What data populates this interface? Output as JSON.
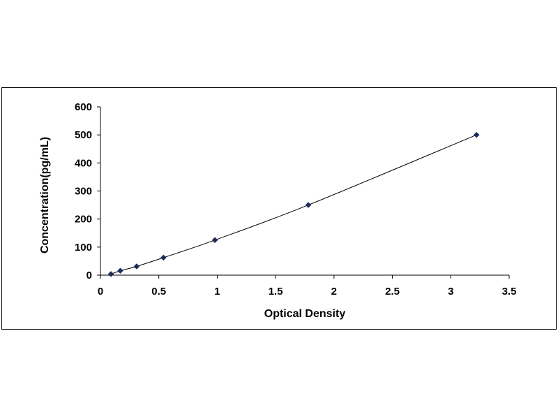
{
  "chart_data": {
    "type": "scatter",
    "title": "",
    "xlabel": "Optical Density",
    "ylabel": "Concentration(pg/mL)",
    "xlim": [
      0,
      3.5
    ],
    "ylim": [
      0,
      600
    ],
    "x_ticks": [
      "0",
      "0.5",
      "1",
      "1.5",
      "2",
      "2.5",
      "3",
      "3.5"
    ],
    "y_ticks": [
      "0",
      "100",
      "200",
      "300",
      "400",
      "500",
      "600"
    ],
    "grid": false,
    "legend": "none",
    "series": [
      {
        "marker": "diamond",
        "trendline": "smooth",
        "color": "#1f2a5c",
        "x": [
          0.09,
          0.17,
          0.31,
          0.54,
          0.98,
          1.78,
          3.22
        ],
        "y": [
          3.9,
          15.6,
          31.2,
          62.5,
          125,
          250,
          500
        ]
      }
    ]
  }
}
